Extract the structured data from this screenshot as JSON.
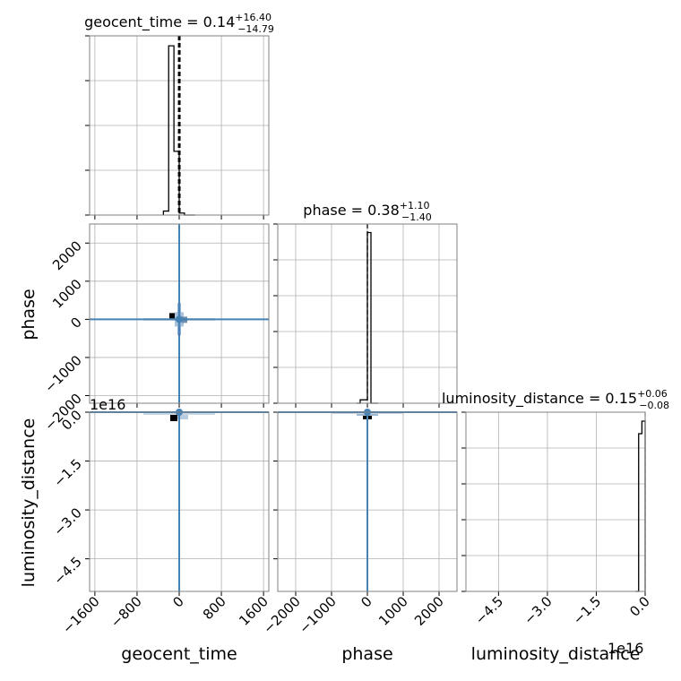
{
  "chart_data": [
    {
      "type": "histogram",
      "panel": "geocent_time-marginal",
      "title_param": "geocent_time",
      "title_value": "0.14",
      "title_plus": "+16.40",
      "title_minus": "−14.79",
      "x_range": [
        -1700,
        1700
      ],
      "x_ticks": [
        -1600,
        -800,
        0,
        800,
        1600
      ],
      "x_tick_labels": [
        "−1600",
        "−800",
        "0",
        "800",
        "1600"
      ],
      "bins": [
        -300,
        -200,
        -100,
        0,
        100,
        200,
        300
      ],
      "counts": [
        0.02,
        0.85,
        0.32,
        0.01,
        0.0,
        0.0
      ],
      "y_max": 0.9,
      "quantile_lines": [
        -14.65,
        0.14,
        16.54
      ],
      "grid": true
    },
    {
      "type": "histogram",
      "panel": "phase-marginal",
      "title_param": "phase",
      "title_value": "0.38",
      "title_plus": "+1.10",
      "title_minus": "−1.40",
      "x_range": [
        -2500,
        2500
      ],
      "x_ticks": [
        -2000,
        -1000,
        0,
        1000,
        2000
      ],
      "x_tick_labels": [
        "−2000",
        "−1000",
        "0",
        "1000",
        "2000"
      ],
      "bins": [
        -300,
        -200,
        -100,
        0,
        100,
        200,
        300
      ],
      "counts": [
        0.0,
        0.02,
        0.02,
        1.0,
        0.0,
        0.0
      ],
      "y_max": 1.05,
      "quantile_lines": [
        -1.02,
        0.38,
        1.48
      ],
      "grid": true
    },
    {
      "type": "histogram",
      "panel": "luminosity_distance-marginal",
      "title_param": "luminosity_distance",
      "title_value": "0.15",
      "title_plus": "+0.06",
      "title_minus": "−0.08",
      "x_range": [
        -5.5,
        0.0
      ],
      "x_ticks": [
        -4.5,
        -3.0,
        -1.5,
        0.0
      ],
      "x_tick_labels": [
        "−4.5",
        "−3.0",
        "−1.5",
        "0.0"
      ],
      "offset_label": "1e16",
      "bins": [
        -0.3,
        -0.2,
        -0.1,
        0.0
      ],
      "counts": [
        0.0,
        0.88,
        0.95
      ],
      "y_max": 1.0,
      "quantile_lines": [
        0.0
      ],
      "grid": true
    },
    {
      "type": "scatter",
      "panel": "phase-vs-geocent_time",
      "x_range": [
        -1700,
        1700
      ],
      "y_range": [
        -2200,
        2500
      ],
      "y_ticks": [
        -2000,
        -1000,
        0,
        1000,
        2000
      ],
      "y_tick_labels": [
        "−2000",
        "−1000",
        "0",
        "1000",
        "2000"
      ],
      "truth": [
        0,
        0
      ],
      "color": "#4682b4",
      "grid": true
    },
    {
      "type": "scatter",
      "panel": "luminosity_distance-vs-geocent_time",
      "x_range": [
        -1700,
        1700
      ],
      "y_range": [
        -5.5,
        0.0
      ],
      "y_ticks": [
        -4.5,
        -3.0,
        -1.5,
        0.0
      ],
      "y_tick_labels": [
        "−4.5",
        "−3.0",
        "−1.5",
        "0.0"
      ],
      "offset_label": "1e16",
      "truth": [
        0,
        0
      ],
      "color": "#4682b4",
      "grid": true
    },
    {
      "type": "scatter",
      "panel": "luminosity_distance-vs-phase",
      "x_range": [
        -2500,
        2500
      ],
      "y_range": [
        -5.5,
        0.0
      ],
      "truth": [
        0,
        0
      ],
      "color": "#4682b4",
      "grid": true
    }
  ],
  "axis_labels": {
    "geocent_time": "geocent_time",
    "phase": "phase",
    "luminosity_distance": "luminosity_distance"
  },
  "offset_text": "1e16"
}
